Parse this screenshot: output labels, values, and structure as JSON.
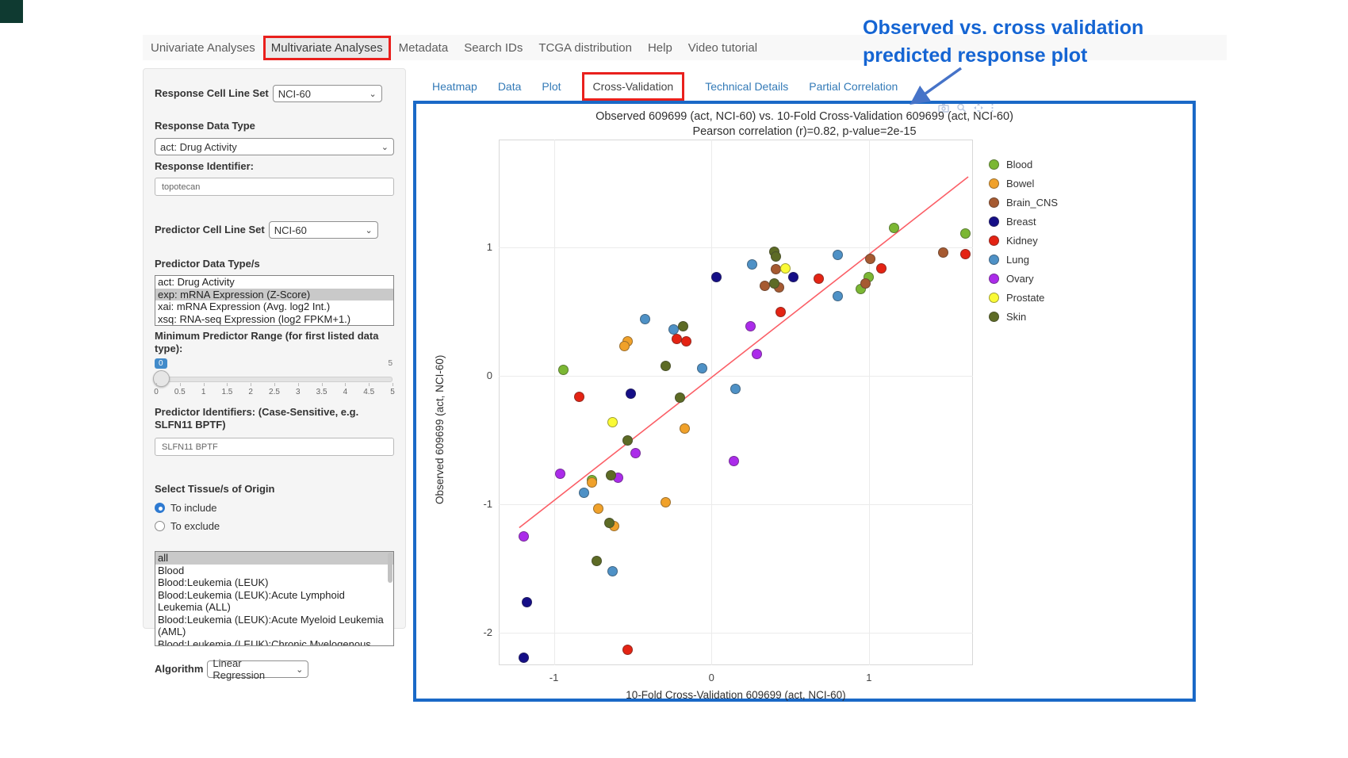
{
  "nav": {
    "tabs": [
      {
        "label": "Univariate Analyses",
        "active": false
      },
      {
        "label": "Multivariate Analyses",
        "active": true
      },
      {
        "label": "Metadata",
        "active": false
      },
      {
        "label": "Search IDs",
        "active": false
      },
      {
        "label": "TCGA distribution",
        "active": false
      },
      {
        "label": "Help",
        "active": false
      },
      {
        "label": "Video tutorial",
        "active": false
      }
    ]
  },
  "sidebar": {
    "response_cell_line_set": {
      "label": "Response Cell Line Set",
      "value": "NCI-60"
    },
    "response_data_type": {
      "label": "Response Data Type",
      "value": "act: Drug Activity"
    },
    "response_identifier": {
      "label": "Response Identifier:",
      "value": "topotecan"
    },
    "predictor_cell_line_set": {
      "label": "Predictor Cell Line Set",
      "value": "NCI-60"
    },
    "predictor_data_types": {
      "label": "Predictor Data Type/s",
      "options": [
        {
          "label": "act: Drug Activity",
          "selected": false
        },
        {
          "label": "exp: mRNA Expression (Z-Score)",
          "selected": true
        },
        {
          "label": "xai: mRNA Expression (Avg. log2 Int.)",
          "selected": false
        },
        {
          "label": "xsq: RNA-seq Expression (log2 FPKM+1.)",
          "selected": false
        }
      ]
    },
    "min_predictor_range": {
      "label": "Minimum Predictor Range (for first listed data type):",
      "value": "0",
      "max_label": "5",
      "ticks": [
        "0",
        "0.5",
        "1",
        "1.5",
        "2",
        "2.5",
        "3",
        "3.5",
        "4",
        "4.5",
        "5"
      ]
    },
    "predictor_identifiers": {
      "label": "Predictor Identifiers: (Case-Sensitive, e.g. SLFN11 BPTF)",
      "value": "SLFN11 BPTF"
    },
    "tissue_origin": {
      "label": "Select Tissue/s of Origin",
      "radios": [
        {
          "label": "To include",
          "checked": true
        },
        {
          "label": "To exclude",
          "checked": false
        }
      ],
      "options": [
        {
          "label": "all",
          "selected": true
        },
        {
          "label": "Blood",
          "selected": false
        },
        {
          "label": "Blood:Leukemia (LEUK)",
          "selected": false
        },
        {
          "label": "Blood:Leukemia (LEUK):Acute Lymphoid Leukemia (ALL)",
          "selected": false
        },
        {
          "label": "Blood:Leukemia (LEUK):Acute Myeloid Leukemia (AML)",
          "selected": false
        },
        {
          "label": "Blood:Leukemia (LEUK):Chronic Myelogenous Leukemia (CML)",
          "selected": false
        }
      ]
    },
    "algorithm": {
      "label": "Algorithm",
      "value": "Linear Regression"
    }
  },
  "subtabs": [
    {
      "label": "Heatmap",
      "active": false
    },
    {
      "label": "Data",
      "active": false
    },
    {
      "label": "Plot",
      "active": false
    },
    {
      "label": "Cross-Validation",
      "active": true
    },
    {
      "label": "Technical Details",
      "active": false
    },
    {
      "label": "Partial Correlation",
      "active": false
    }
  ],
  "annotation": {
    "line1": "Observed vs. cross validation",
    "line2": "predicted response plot",
    "text_color": "#1565d3",
    "arrow_color": "#4673c8"
  },
  "colors": {
    "highlight_red": "#e9201d",
    "plot_border_blue": "#1a69c7",
    "link_blue": "#337ab7"
  },
  "chart_data": {
    "type": "scatter",
    "title": "Observed 609699 (act, NCI-60) vs. 10-Fold Cross-Validation 609699 (act, NCI-60)",
    "subtitle": "Pearson correlation (r)=0.82, p-value=2e-15",
    "xlabel": "10-Fold Cross-Validation 609699 (act, NCI-60)",
    "ylabel": "Observed 609699 (act, NCI-60)",
    "xlim": [
      -1.35,
      1.66
    ],
    "ylim": [
      -2.25,
      1.84
    ],
    "xticks": [
      -1,
      0,
      1
    ],
    "yticks": [
      1,
      0,
      -1,
      -2
    ],
    "grid": true,
    "legend_position": "right",
    "trend_line": {
      "color": "#fb5e66",
      "x1": -1.22,
      "y1": -1.18,
      "x2": 1.63,
      "y2": 1.55
    },
    "series": [
      {
        "name": "Blood",
        "color": "#7bb733",
        "points": [
          [
            1.16,
            1.15
          ],
          [
            1.61,
            1.11
          ],
          [
            1.0,
            0.77
          ],
          [
            0.95,
            0.68
          ],
          [
            -0.94,
            0.05
          ],
          [
            -0.76,
            -0.81
          ]
        ]
      },
      {
        "name": "Bowel",
        "color": "#f0a12a",
        "points": [
          [
            -0.53,
            0.27
          ],
          [
            -0.55,
            0.23
          ],
          [
            -0.17,
            -0.41
          ],
          [
            -0.76,
            -0.83
          ],
          [
            -0.29,
            -0.98
          ],
          [
            -0.72,
            -1.03
          ],
          [
            -0.62,
            -1.17
          ]
        ]
      },
      {
        "name": "Brain_CNS",
        "color": "#a65a31",
        "points": [
          [
            1.47,
            0.96
          ],
          [
            1.01,
            0.91
          ],
          [
            0.41,
            0.83
          ],
          [
            0.98,
            0.72
          ],
          [
            0.34,
            0.7
          ],
          [
            0.43,
            0.69
          ]
        ]
      },
      {
        "name": "Breast",
        "color": "#150e87",
        "points": [
          [
            0.03,
            0.77
          ],
          [
            0.52,
            0.77
          ],
          [
            -0.51,
            -0.14
          ],
          [
            -1.17,
            -1.76
          ],
          [
            -1.19,
            -2.19
          ]
        ]
      },
      {
        "name": "Kidney",
        "color": "#e42313",
        "points": [
          [
            1.61,
            0.95
          ],
          [
            1.08,
            0.84
          ],
          [
            0.68,
            0.76
          ],
          [
            0.44,
            0.5
          ],
          [
            -0.22,
            0.29
          ],
          [
            -0.16,
            0.27
          ],
          [
            -0.84,
            -0.16
          ],
          [
            -0.53,
            -2.13
          ]
        ]
      },
      {
        "name": "Lung",
        "color": "#4e91c6",
        "points": [
          [
            0.8,
            0.94
          ],
          [
            0.26,
            0.87
          ],
          [
            0.8,
            0.62
          ],
          [
            -0.42,
            0.44
          ],
          [
            -0.24,
            0.36
          ],
          [
            -0.06,
            0.06
          ],
          [
            0.15,
            -0.1
          ],
          [
            -0.81,
            -0.91
          ],
          [
            -0.63,
            -1.52
          ]
        ]
      },
      {
        "name": "Ovary",
        "color": "#ab2bea",
        "points": [
          [
            0.25,
            0.39
          ],
          [
            0.29,
            0.17
          ],
          [
            -0.48,
            -0.6
          ],
          [
            0.14,
            -0.66
          ],
          [
            -0.96,
            -0.76
          ],
          [
            -0.59,
            -0.79
          ],
          [
            -1.19,
            -1.25
          ]
        ]
      },
      {
        "name": "Prostate",
        "color": "#fafa35",
        "points": [
          [
            0.47,
            0.84
          ],
          [
            -0.63,
            -0.36
          ]
        ]
      },
      {
        "name": "Skin",
        "color": "#5d6b25",
        "points": [
          [
            0.4,
            0.97
          ],
          [
            0.41,
            0.93
          ],
          [
            0.4,
            0.72
          ],
          [
            -0.18,
            0.39
          ],
          [
            -0.29,
            0.08
          ],
          [
            -0.2,
            -0.17
          ],
          [
            -0.53,
            -0.5
          ],
          [
            -0.64,
            -0.77
          ],
          [
            -0.65,
            -1.14
          ],
          [
            -0.73,
            -1.44
          ]
        ]
      }
    ]
  }
}
